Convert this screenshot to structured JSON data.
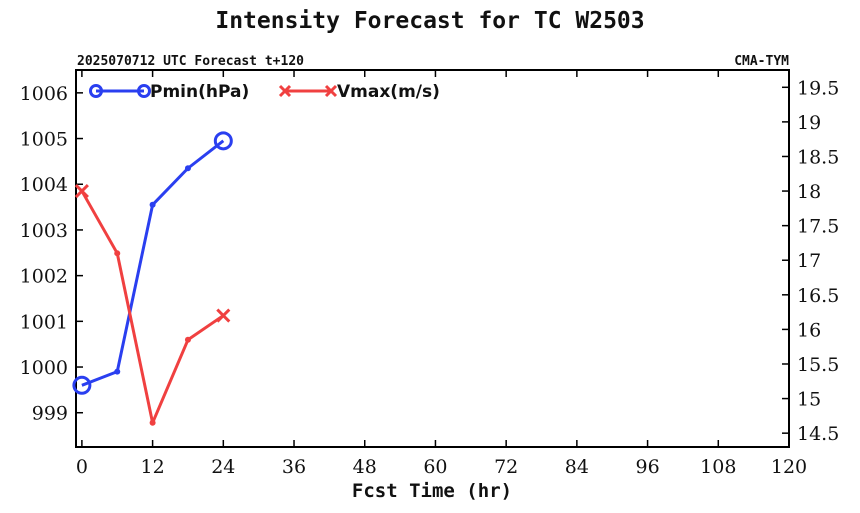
{
  "chart_data": {
    "type": "line",
    "title": "Intensity Forecast for TC W2503",
    "subtitle_left": "2025070712 UTC Forecast t+120",
    "subtitle_right": "CMA-TYM",
    "xlabel": "Fcst Time (hr)",
    "xlim": [
      -1,
      120
    ],
    "xticks": [
      0,
      12,
      24,
      36,
      48,
      60,
      72,
      84,
      96,
      108,
      120
    ],
    "left_axis": {
      "ylim": [
        998.25,
        1006.5
      ],
      "ticks": [
        999,
        1000,
        1001,
        1002,
        1003,
        1004,
        1005,
        1006
      ]
    },
    "right_axis": {
      "ylim": [
        14.3,
        19.75
      ],
      "ticks": [
        14.5,
        15,
        15.5,
        16,
        16.5,
        17,
        17.5,
        18,
        18.5,
        19,
        19.5
      ]
    },
    "legend_position": "top-left",
    "series": [
      {
        "name": "Pmin(hPa)",
        "axis": "left",
        "color": "#2a3ff0",
        "marker": "circle",
        "x": [
          0,
          6,
          12,
          18,
          24
        ],
        "values": [
          999.6,
          999.9,
          1003.55,
          1004.35,
          1004.95
        ]
      },
      {
        "name": "Vmax(m/s)",
        "axis": "right",
        "color": "#f04040",
        "marker": "x",
        "x": [
          0,
          6,
          12,
          18,
          24
        ],
        "values": [
          18.0,
          17.1,
          14.65,
          15.85,
          16.2
        ]
      }
    ]
  }
}
